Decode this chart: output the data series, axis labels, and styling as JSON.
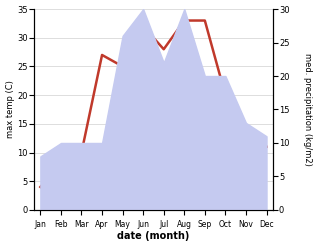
{
  "months": [
    "Jan",
    "Feb",
    "Mar",
    "Apr",
    "May",
    "Jun",
    "Jul",
    "Aug",
    "Sep",
    "Oct",
    "Nov",
    "Dec"
  ],
  "temperature": [
    4,
    8,
    10,
    27,
    25,
    32,
    28,
    33,
    33,
    20,
    11,
    11
  ],
  "precipitation": [
    8,
    10,
    10,
    10,
    26,
    30,
    22,
    30,
    20,
    20,
    13,
    11
  ],
  "temp_color": "#c0392b",
  "precip_fill_color": "#c5caf0",
  "temp_ylim": [
    0,
    35
  ],
  "precip_ylim": [
    0,
    30
  ],
  "xlabel": "date (month)",
  "ylabel_left": "max temp (C)",
  "ylabel_right": "med. precipitation (kg/m2)",
  "temp_yticks": [
    0,
    5,
    10,
    15,
    20,
    25,
    30,
    35
  ],
  "precip_yticks": [
    0,
    5,
    10,
    15,
    20,
    25,
    30
  ],
  "linewidth": 1.8,
  "figsize": [
    3.18,
    2.47
  ],
  "dpi": 100
}
